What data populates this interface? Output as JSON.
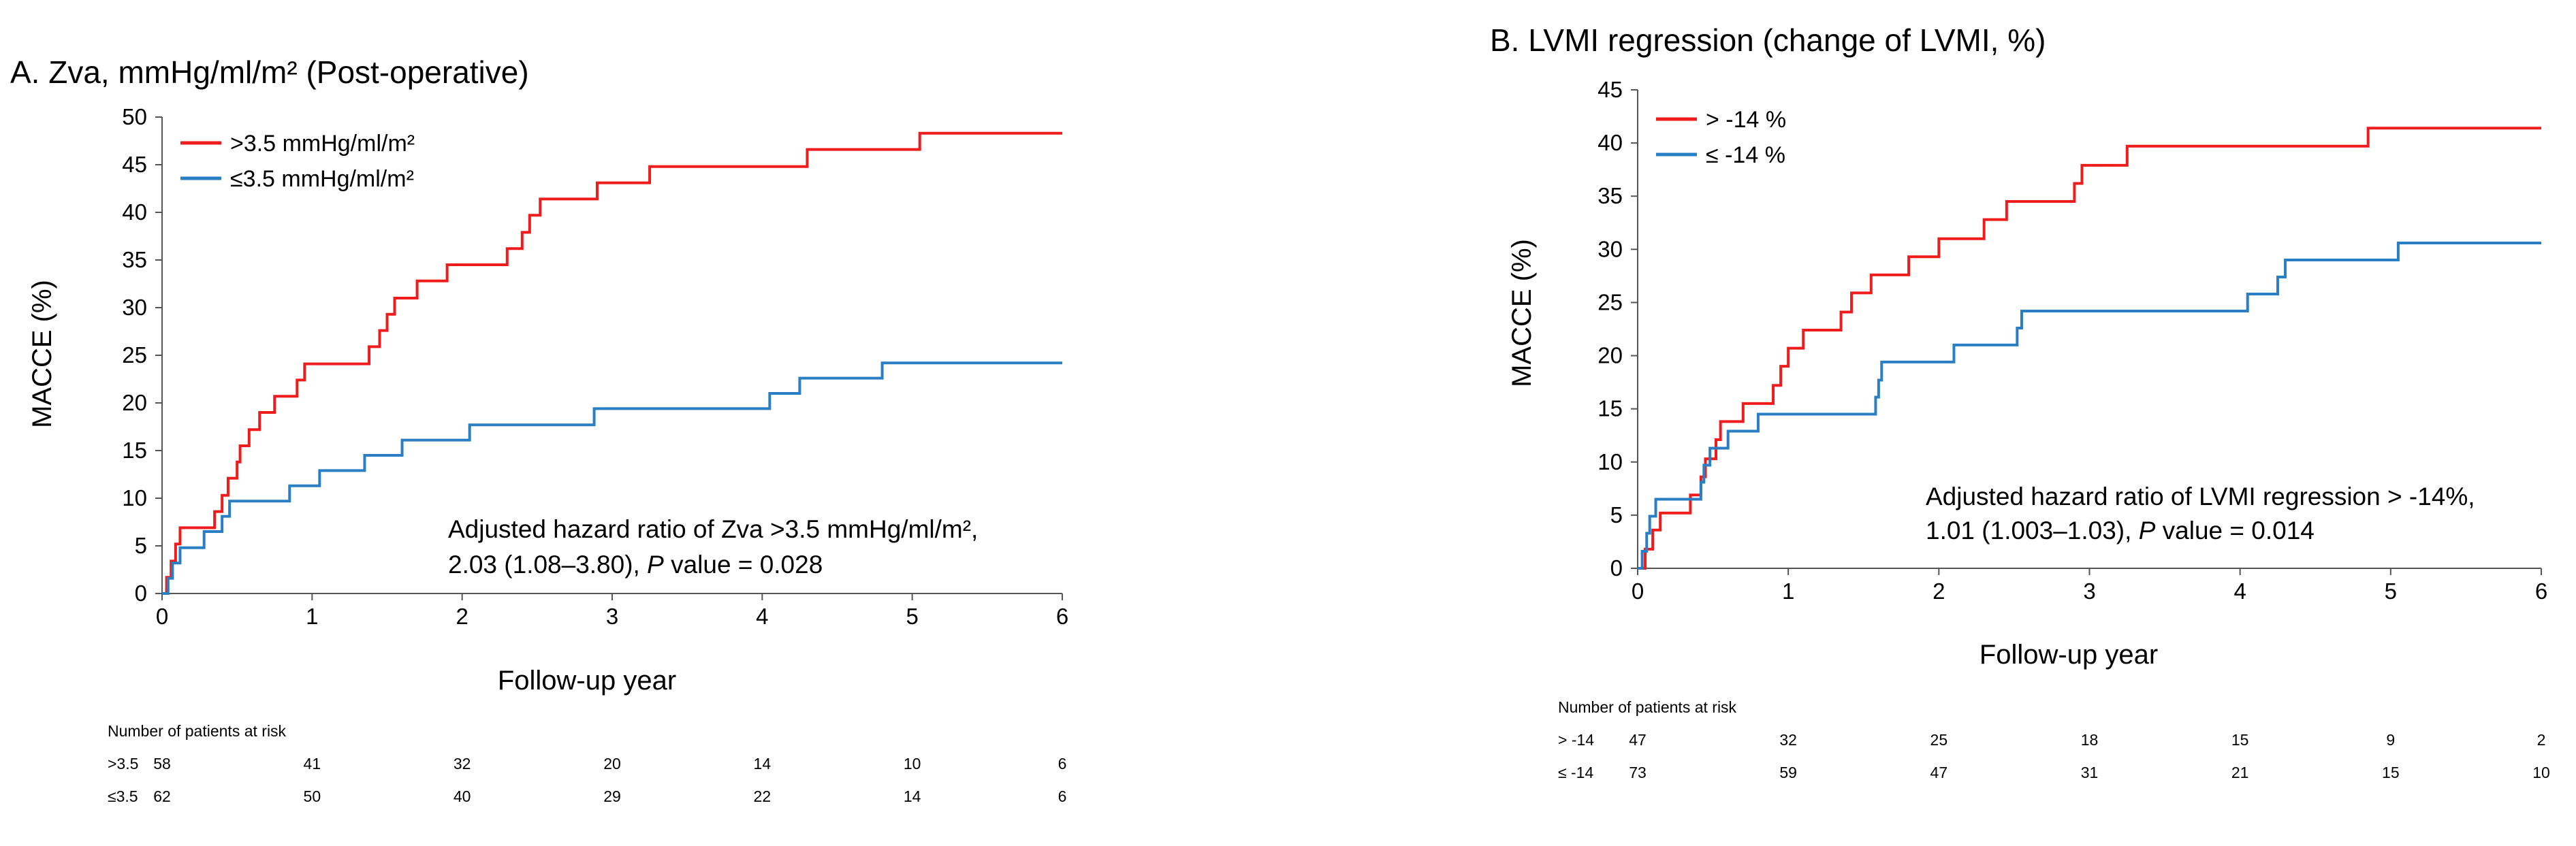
{
  "chart_data": [
    {
      "type": "line",
      "step": true,
      "panel_label": "A.",
      "title": "Zva, mmHg/ml/m² (Post-operative)",
      "xlabel": "Follow-up year",
      "ylabel": "MACCE (%)",
      "xlim": [
        0,
        6
      ],
      "ylim": [
        0,
        50
      ],
      "x_ticks": [
        "0",
        "1",
        "2",
        "3",
        "4",
        "5",
        "6"
      ],
      "y_ticks": [
        "0",
        "5",
        "10",
        "15",
        "20",
        "25",
        "30",
        "35",
        "40",
        "45",
        "50"
      ],
      "legend_position": "top-left",
      "series": [
        {
          "name": ">3.5 mmHg/ml/m²",
          "color": "#ee1c1c",
          "points": [
            [
              0,
              0
            ],
            [
              0.03,
              1.7
            ],
            [
              0.06,
              3.4
            ],
            [
              0.09,
              5.2
            ],
            [
              0.12,
              6.9
            ],
            [
              0.35,
              8.6
            ],
            [
              0.4,
              10.3
            ],
            [
              0.44,
              12.1
            ],
            [
              0.5,
              13.8
            ],
            [
              0.52,
              15.5
            ],
            [
              0.58,
              17.2
            ],
            [
              0.65,
              19
            ],
            [
              0.75,
              20.7
            ],
            [
              0.9,
              22.4
            ],
            [
              0.95,
              24.1
            ],
            [
              1.38,
              25.9
            ],
            [
              1.45,
              27.6
            ],
            [
              1.5,
              29.3
            ],
            [
              1.55,
              31
            ],
            [
              1.7,
              32.8
            ],
            [
              1.9,
              34.5
            ],
            [
              2.3,
              36.2
            ],
            [
              2.4,
              37.9
            ],
            [
              2.45,
              39.7
            ],
            [
              2.52,
              41.4
            ],
            [
              2.9,
              43.1
            ],
            [
              3.25,
              44.8
            ],
            [
              4.3,
              46.6
            ],
            [
              5.05,
              48.3
            ],
            [
              6,
              48.3
            ]
          ]
        },
        {
          "name": "≤3.5 mmHg/ml/m²",
          "color": "#2a7ec4",
          "points": [
            [
              0,
              0
            ],
            [
              0.04,
              1.6
            ],
            [
              0.07,
              3.2
            ],
            [
              0.12,
              4.8
            ],
            [
              0.28,
              6.5
            ],
            [
              0.4,
              8.1
            ],
            [
              0.45,
              9.7
            ],
            [
              0.85,
              11.3
            ],
            [
              1.05,
              12.9
            ],
            [
              1.35,
              14.5
            ],
            [
              1.6,
              16.1
            ],
            [
              2.05,
              17.7
            ],
            [
              2.88,
              19.4
            ],
            [
              4.05,
              21
            ],
            [
              4.25,
              22.6
            ],
            [
              4.8,
              24.2
            ],
            [
              6,
              24.2
            ]
          ]
        }
      ],
      "annotation": {
        "line1": "Adjusted hazard ratio of Zva >3.5 mmHg/ml/m²,",
        "line2_pre": "2.03 (1.08–3.80), ",
        "line2_p": "P",
        "line2_post": " value = 0.028"
      },
      "at_risk": {
        "header": "Number of patients at risk",
        "rows": [
          {
            "label": ">3.5",
            "values": [
              "58",
              "41",
              "32",
              "20",
              "14",
              "10",
              "6"
            ]
          },
          {
            "label": "≤3.5",
            "values": [
              "62",
              "50",
              "40",
              "29",
              "22",
              "14",
              "6"
            ]
          }
        ]
      }
    },
    {
      "type": "line",
      "step": true,
      "panel_label": "B.",
      "title": "LVMI regression (change of LVMI, %)",
      "xlabel": "Follow-up year",
      "ylabel": "MACCE (%)",
      "xlim": [
        0,
        6
      ],
      "ylim": [
        0,
        45
      ],
      "x_ticks": [
        "0",
        "1",
        "2",
        "3",
        "4",
        "5",
        "6"
      ],
      "y_ticks": [
        "0",
        "5",
        "10",
        "15",
        "20",
        "25",
        "30",
        "35",
        "40",
        "45"
      ],
      "legend_position": "top-left",
      "series": [
        {
          "name": "> -14 %",
          "color": "#ee1c1c",
          "points": [
            [
              0,
              0
            ],
            [
              0.05,
              1.8
            ],
            [
              0.1,
              3.6
            ],
            [
              0.15,
              5.2
            ],
            [
              0.35,
              6.9
            ],
            [
              0.42,
              8.6
            ],
            [
              0.45,
              10.3
            ],
            [
              0.52,
              12.1
            ],
            [
              0.55,
              13.8
            ],
            [
              0.7,
              15.5
            ],
            [
              0.9,
              17.2
            ],
            [
              0.95,
              19
            ],
            [
              1,
              20.7
            ],
            [
              1.1,
              22.4
            ],
            [
              1.35,
              24.1
            ],
            [
              1.42,
              25.9
            ],
            [
              1.55,
              27.6
            ],
            [
              1.8,
              29.3
            ],
            [
              2,
              31
            ],
            [
              2.3,
              32.8
            ],
            [
              2.45,
              34.5
            ],
            [
              2.9,
              36.2
            ],
            [
              2.95,
              37.9
            ],
            [
              3.25,
              39.7
            ],
            [
              4.85,
              41.4
            ],
            [
              6,
              41.4
            ]
          ]
        },
        {
          "name": "≤ -14 %",
          "color": "#2a7ec4",
          "points": [
            [
              0,
              0
            ],
            [
              0.03,
              1.6
            ],
            [
              0.06,
              3.3
            ],
            [
              0.08,
              4.9
            ],
            [
              0.12,
              6.5
            ],
            [
              0.42,
              8.1
            ],
            [
              0.44,
              9.7
            ],
            [
              0.48,
              11.3
            ],
            [
              0.6,
              12.9
            ],
            [
              0.8,
              14.5
            ],
            [
              1.58,
              16.1
            ],
            [
              1.6,
              17.7
            ],
            [
              1.62,
              19.4
            ],
            [
              2.1,
              21
            ],
            [
              2.52,
              22.6
            ],
            [
              2.55,
              24.2
            ],
            [
              4.05,
              25.8
            ],
            [
              4.25,
              27.4
            ],
            [
              4.3,
              29
            ],
            [
              5.05,
              30.6
            ],
            [
              6,
              30.6
            ]
          ]
        }
      ],
      "annotation": {
        "line1": "Adjusted hazard ratio of LVMI regression > -14%,",
        "line2_pre": "1.01 (1.003–1.03), ",
        "line2_p": "P",
        "line2_post": " value = 0.014"
      },
      "at_risk": {
        "header": "Number of patients at risk",
        "rows": [
          {
            "label": "> -14",
            "values": [
              "47",
              "32",
              "25",
              "18",
              "15",
              "9",
              "2"
            ]
          },
          {
            "label": "≤ -14",
            "values": [
              "73",
              "59",
              "47",
              "31",
              "21",
              "15",
              "10"
            ]
          }
        ]
      }
    }
  ]
}
